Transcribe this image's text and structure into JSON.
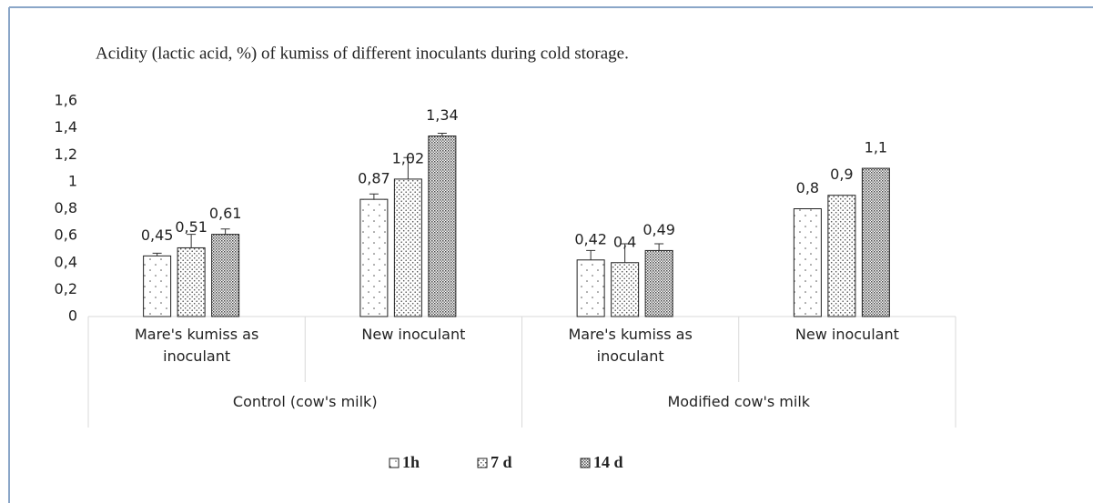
{
  "chart_data": {
    "type": "bar",
    "title": "Acidity (lactic acid, %) of kumiss of different inoculants during cold storage.",
    "categories": [
      "Mare's kumiss as inoculant",
      "New inoculant",
      "Mare's kumiss as inoculant",
      "New inoculant"
    ],
    "groups": [
      "Control (cow's milk)",
      "Modified cow's milk"
    ],
    "series": [
      {
        "name": "1h",
        "values": [
          0.45,
          0.87,
          0.42,
          0.8
        ],
        "value_labels": [
          "0,45",
          "0,87",
          "0,42",
          "0,8"
        ],
        "errors": [
          0.02,
          0.04,
          0.07,
          null
        ]
      },
      {
        "name": "7 d",
        "values": [
          0.51,
          1.02,
          0.4,
          0.9
        ],
        "value_labels": [
          "0,51",
          "1,02",
          "0,4",
          "0,9"
        ],
        "errors": [
          0.1,
          0.16,
          0.14,
          null
        ]
      },
      {
        "name": "14 d",
        "values": [
          0.61,
          1.34,
          0.49,
          1.1
        ],
        "value_labels": [
          "0,61",
          "1,34",
          "0,49",
          "1,1"
        ],
        "errors": [
          0.04,
          0.02,
          0.05,
          null
        ]
      }
    ],
    "ylim": [
      0,
      1.6
    ],
    "yticks": [
      0,
      {
        "value": 0.2,
        "label": "0,2"
      },
      {
        "value": 0.4,
        "label": "0,4"
      },
      {
        "value": 0.6,
        "label": "0,6"
      },
      {
        "value": 0.8,
        "label": "0,8"
      },
      1,
      {
        "value": 1.2,
        "label": "1,2"
      },
      {
        "value": 1.4,
        "label": "1,4"
      },
      {
        "value": 1.6,
        "label": "1,6"
      }
    ],
    "legend": "bottom"
  }
}
